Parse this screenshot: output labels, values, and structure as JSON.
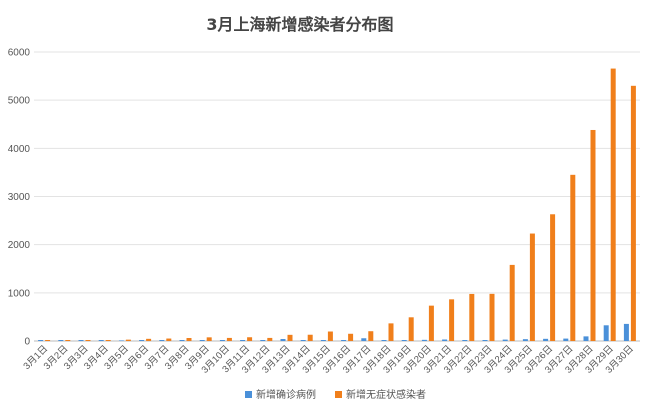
{
  "chart_data": {
    "type": "bar",
    "title": "3月上海新增感染者分布图",
    "xlabel": "",
    "ylabel": "",
    "ylim": [
      0,
      6000
    ],
    "yticks": [
      "0",
      "1000",
      "2000",
      "3000",
      "4000",
      "5000",
      "6000"
    ],
    "categories": [
      "3月1日",
      "3月2日",
      "3月3日",
      "3月4日",
      "3月5日",
      "3月6日",
      "3月7日",
      "3月8日",
      "3月9日",
      "3月10日",
      "3月11日",
      "3月12日",
      "3月13日",
      "3月14日",
      "3月15日",
      "3月16日",
      "3月17日",
      "3月18日",
      "3月19日",
      "3月20日",
      "3月21日",
      "3月22日",
      "3月23日",
      "3月24日",
      "3月25日",
      "3月26日",
      "3月27日",
      "3月28日",
      "3月29日",
      "3月30日"
    ],
    "series": [
      {
        "name": "新增确诊病例",
        "color": "#4a90d9",
        "values": [
          2,
          3,
          3,
          3,
          0,
          3,
          4,
          3,
          4,
          11,
          5,
          1,
          41,
          9,
          5,
          8,
          57,
          8,
          17,
          24,
          31,
          4,
          4,
          29,
          38,
          45,
          50,
          96,
          326,
          355
        ]
      },
      {
        "name": "新增无症状感染者",
        "color": "#f07f1b",
        "values": [
          1,
          5,
          14,
          16,
          28,
          45,
          51,
          62,
          76,
          64,
          78,
          64,
          128,
          130,
          197,
          150,
          203,
          366,
          492,
          734,
          865,
          977,
          979,
          1580,
          2231,
          2631,
          3450,
          4381,
          5656,
          5298
        ]
      }
    ],
    "grid": true,
    "legend_position": "bottom"
  }
}
